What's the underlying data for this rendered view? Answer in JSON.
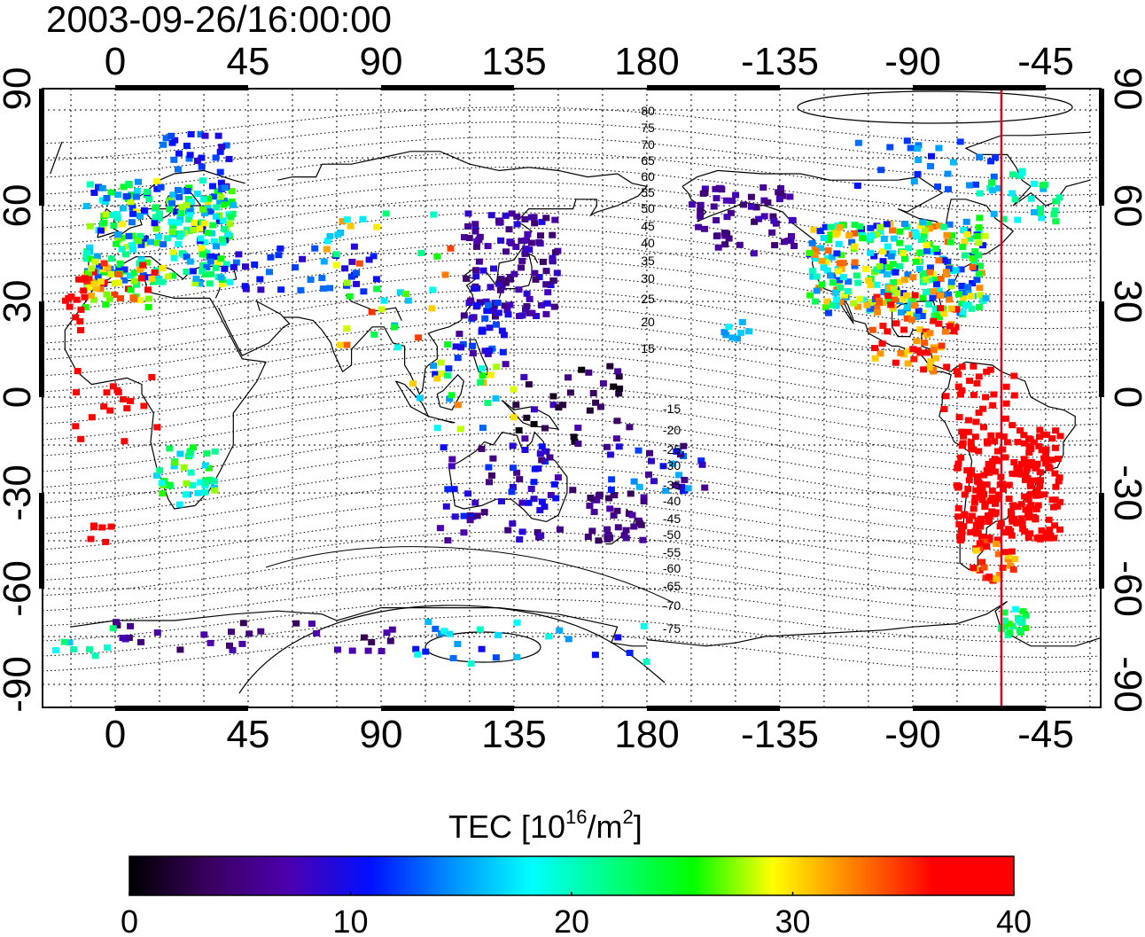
{
  "title": "2003-09-26/16:00:00",
  "map": {
    "top_lon_ticks": [
      "0",
      "45",
      "90",
      "135",
      "180",
      "-135",
      "-90",
      "-45"
    ],
    "bottom_lon_ticks": [
      "0",
      "45",
      "90",
      "135",
      "180",
      "-135",
      "-90",
      "-45"
    ],
    "left_lat_ticks": [
      "90",
      "60",
      "30",
      "0",
      "-30",
      "-60",
      "-90"
    ],
    "right_lat_ticks": [
      "90",
      "60",
      "30",
      "0",
      "-30",
      "-60",
      "-90"
    ],
    "north_contour_labels": [
      "80",
      "75",
      "70",
      "65",
      "60",
      "55",
      "50",
      "45",
      "40",
      "35",
      "30",
      "25",
      "20",
      "15"
    ],
    "south_contour_labels": [
      "-15",
      "-20",
      "-25",
      "-30",
      "-35",
      "-40",
      "-45",
      "-50",
      "-55",
      "-60",
      "-65",
      "-70",
      "-75"
    ],
    "terminator_color": "#e0001a",
    "terminator_lon": -60
  },
  "colorbar": {
    "label_main": "TEC  [10",
    "label_exp1": "16",
    "label_mid": "/m",
    "label_exp2": "2",
    "label_end": "]",
    "ticks": [
      "0",
      "10",
      "20",
      "30",
      "40"
    ],
    "min": 0,
    "max": 40,
    "colors": [
      "#000000",
      "#3a0060",
      "#4b00b0",
      "#0010ff",
      "#0090ff",
      "#00ffff",
      "#00ff80",
      "#00ff00",
      "#ffff00",
      "#ff8000",
      "#ff0000",
      "#ff0000"
    ]
  }
}
